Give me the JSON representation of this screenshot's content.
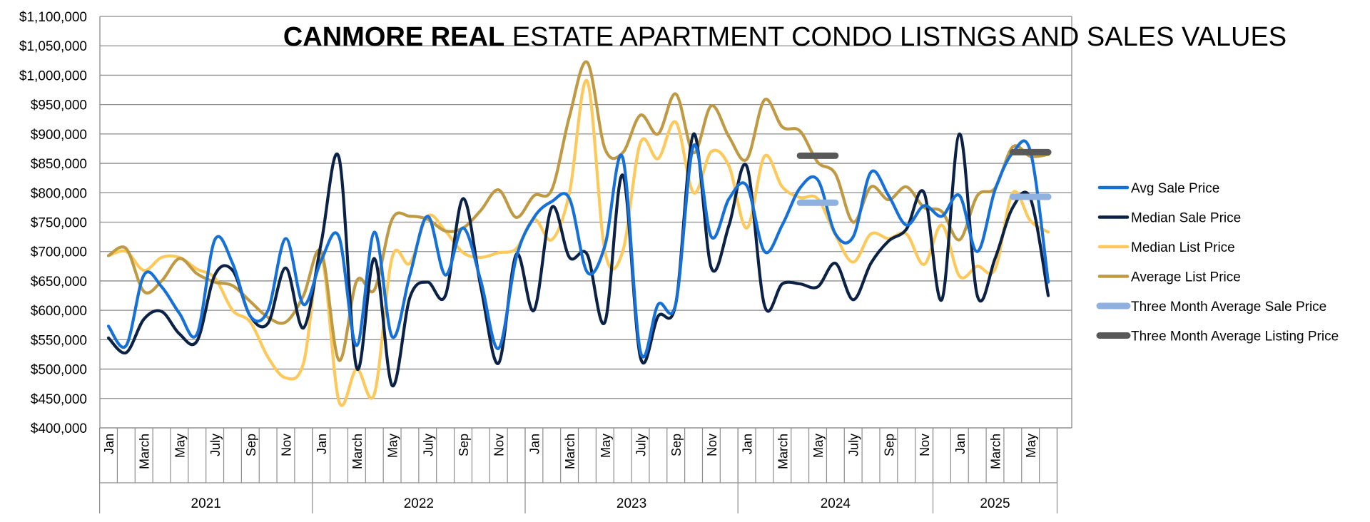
{
  "chart_data": {
    "type": "line",
    "title_bold": "CANMORE REAL",
    "title_rest": " ESTATE  APARTMENT CONDO LISTNGS AND SALES VALUES",
    "ylim": [
      400000,
      1100000
    ],
    "y_ticks": [
      "$400,000",
      "$450,000",
      "$500,000",
      "$550,000",
      "$600,000",
      "$650,000",
      "$700,000",
      "$750,000",
      "$800,000",
      "$850,000",
      "$900,000",
      "$950,000",
      "$1,000,000",
      "$1,050,000",
      "$1,100,000"
    ],
    "y_tick_values": [
      400000,
      450000,
      500000,
      550000,
      600000,
      650000,
      700000,
      750000,
      800000,
      850000,
      900000,
      950000,
      1000000,
      1050000,
      1100000
    ],
    "month_labels": [
      "Jan",
      "",
      "March",
      "",
      "May",
      "",
      "July",
      "",
      "Sep",
      "",
      "Nov",
      "",
      "Jan",
      "",
      "March",
      "",
      "May",
      "",
      "July",
      "",
      "Sep",
      "",
      "Nov",
      "",
      "Jan",
      "",
      "March",
      "",
      "May",
      "",
      "July",
      "",
      "Sep",
      "",
      "Nov",
      "",
      "Jan",
      "",
      "March",
      "",
      "May",
      "",
      "July",
      "",
      "Sep",
      "",
      "Nov",
      "",
      "Jan",
      "",
      "March",
      "",
      "May",
      ""
    ],
    "years": [
      {
        "label": "2021",
        "start": 0,
        "count": 12
      },
      {
        "label": "2022",
        "start": 12,
        "count": 12
      },
      {
        "label": "2023",
        "start": 24,
        "count": 12
      },
      {
        "label": "2024",
        "start": 36,
        "count": 11
      },
      {
        "label": "2025",
        "start": 47,
        "count": 7
      }
    ],
    "grid": true,
    "legend_position": "right",
    "series": [
      {
        "name": "Avg Sale Price",
        "color": "#1570d8",
        "values": [
          573000,
          540000,
          660000,
          640000,
          595000,
          560000,
          720000,
          680000,
          590000,
          600000,
          722000,
          610000,
          685000,
          725000,
          540000,
          733000,
          555000,
          660000,
          760000,
          660000,
          740000,
          650000,
          535000,
          690000,
          758000,
          785000,
          790000,
          665000,
          710000,
          860000,
          530000,
          610000,
          612000,
          880000,
          725000,
          790000,
          812000,
          700000,
          745000,
          808000,
          822000,
          730000,
          725000,
          835000,
          795000,
          745000,
          778000,
          760000,
          795000,
          700000,
          805000,
          868000,
          870000,
          648000
        ]
      },
      {
        "name": "Median Sale Price",
        "color": "#0b2246",
        "values": [
          553000,
          528000,
          585000,
          598000,
          560000,
          548000,
          660000,
          668000,
          590000,
          578000,
          672000,
          570000,
          715000,
          860000,
          502000,
          688000,
          472000,
          622000,
          648000,
          625000,
          790000,
          640000,
          510000,
          695000,
          600000,
          775000,
          690000,
          695000,
          580000,
          830000,
          520000,
          590000,
          612000,
          900000,
          672000,
          745000,
          845000,
          608000,
          645000,
          645000,
          640000,
          680000,
          618000,
          680000,
          718000,
          738000,
          800000,
          618000,
          900000,
          625000,
          688000,
          775000,
          790000,
          625000
        ]
      },
      {
        "name": "Median List Price",
        "color": "#fcc95a",
        "values": [
          693000,
          700000,
          668000,
          690000,
          690000,
          670000,
          655000,
          600000,
          580000,
          520000,
          485000,
          510000,
          690000,
          445000,
          500000,
          458000,
          690000,
          680000,
          760000,
          735000,
          698000,
          690000,
          698000,
          705000,
          755000,
          720000,
          800000,
          990000,
          700000,
          700000,
          885000,
          858000,
          920000,
          800000,
          870000,
          845000,
          740000,
          862000,
          810000,
          792000,
          790000,
          728000,
          682000,
          730000,
          722000,
          730000,
          678000,
          745000,
          658000,
          675000,
          670000,
          800000,
          752000,
          733000
        ]
      },
      {
        "name": "Average List Price",
        "color": "#bf9a43",
        "values": [
          693000,
          705000,
          632000,
          650000,
          688000,
          662000,
          648000,
          642000,
          615000,
          588000,
          580000,
          625000,
          700000,
          515000,
          650000,
          635000,
          755000,
          760000,
          755000,
          735000,
          740000,
          770000,
          805000,
          758000,
          795000,
          805000,
          930000,
          1022000,
          875000,
          868000,
          932000,
          900000,
          968000,
          868000,
          948000,
          895000,
          857000,
          958000,
          912000,
          905000,
          852000,
          832000,
          750000,
          810000,
          788000,
          810000,
          775000,
          768000,
          720000,
          795000,
          808000,
          878000,
          862000,
          865000
        ]
      },
      {
        "name": "Three Month Average Sale Price",
        "color": "#8fb1e0",
        "dash_series": true,
        "segments": [
          {
            "from": 39,
            "to": 41,
            "value": 783000
          },
          {
            "from": 51,
            "to": 53,
            "value": 793000
          }
        ]
      },
      {
        "name": "Three Month Average Listing Price",
        "color": "#595959",
        "dash_series": true,
        "segments": [
          {
            "from": 39,
            "to": 41,
            "value": 863000
          },
          {
            "from": 51,
            "to": 53,
            "value": 869000
          }
        ]
      }
    ]
  }
}
